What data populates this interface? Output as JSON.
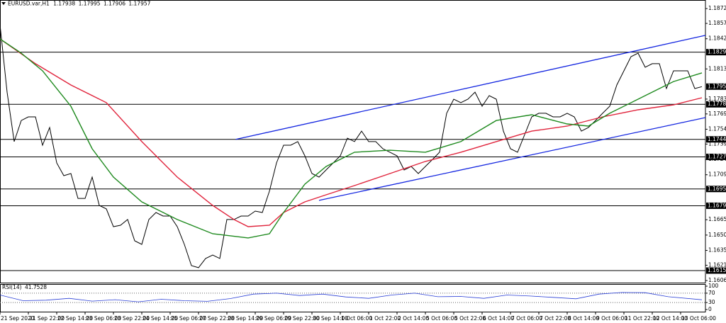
{
  "chart_data": {
    "type": "line",
    "symbol": "EURUSD.var,H1",
    "ohlc": [
      1.17938,
      1.17995,
      1.17906,
      1.17957
    ],
    "xlim": [
      0,
      398
    ],
    "xticks": [
      {
        "value": 0,
        "label": "21 Sep 2020"
      },
      {
        "value": 16,
        "label": "21 Sep 22:00"
      },
      {
        "value": 32,
        "label": "22 Sep 14:00"
      },
      {
        "value": 48,
        "label": "23 Sep 06:00"
      },
      {
        "value": 64,
        "label": "23 Sep 22:00"
      },
      {
        "value": 80,
        "label": "24 Sep 14:00"
      },
      {
        "value": 96,
        "label": "25 Sep 06:00"
      },
      {
        "value": 112,
        "label": "27 Sep 22:00"
      },
      {
        "value": 128,
        "label": "28 Sep 14:00"
      },
      {
        "value": 144,
        "label": "29 Sep 06:00"
      },
      {
        "value": 160,
        "label": "29 Sep 22:00"
      },
      {
        "value": 176,
        "label": "30 Sep 14:00"
      },
      {
        "value": 192,
        "label": "1 Oct 06:00"
      },
      {
        "value": 208,
        "label": "1 Oct 22:00"
      },
      {
        "value": 224,
        "label": "2 Oct 14:00"
      },
      {
        "value": 240,
        "label": "5 Oct 06:00"
      },
      {
        "value": 256,
        "label": "5 Oct 22:00"
      },
      {
        "value": 272,
        "label": "6 Oct 14:00"
      },
      {
        "value": 288,
        "label": "7 Oct 06:00"
      },
      {
        "value": 304,
        "label": "7 Oct 22:00"
      },
      {
        "value": 320,
        "label": "8 Oct 14:00"
      },
      {
        "value": 336,
        "label": "9 Oct 06:00"
      },
      {
        "value": 352,
        "label": "11 Oct 22:00"
      },
      {
        "value": 368,
        "label": "12 Oct 14:00"
      },
      {
        "value": 384,
        "label": "13 Oct 06:00"
      }
    ],
    "ylim": [
      1.1604,
      1.18804
    ],
    "yticks": [
      {
        "value": 1.1872,
        "label": "1.18720"
      },
      1.18575,
      1.18425,
      {
        "value": 1.1813,
        "label": "1.18130"
      },
      1.17835,
      {
        "value": 1.1769,
        "label": "1.17690"
      },
      {
        "value": 1.1754,
        "label": "1.17540"
      },
      1.17395,
      1.17245,
      1.17095,
      1.16655,
      1.16505,
      1.16355,
      {
        "value": 1.1621,
        "label": "1.16210"
      },
      {
        "value": 1.1606,
        "label": "1.16060"
      }
    ],
    "series": [
      {
        "color": "#000000",
        "x": [
          0,
          4,
          8,
          12,
          16,
          20,
          24,
          28,
          32,
          36,
          40,
          44,
          48,
          52,
          56,
          60,
          64,
          68,
          72,
          76,
          80,
          84,
          88,
          92,
          96,
          100,
          104,
          108,
          112,
          116,
          120,
          124,
          128,
          132,
          136,
          140,
          144,
          148,
          152,
          156,
          160,
          164,
          168,
          172,
          176,
          180,
          184,
          188,
          192,
          196,
          200,
          204,
          208,
          212,
          216,
          220,
          224,
          228,
          232,
          236,
          240,
          244,
          248,
          252,
          256,
          260,
          264,
          268,
          272,
          276,
          280,
          284,
          288,
          292,
          296,
          300,
          304,
          308,
          312,
          316,
          320,
          324,
          328,
          332,
          336,
          340,
          344,
          348,
          352,
          356,
          360,
          364,
          368,
          372,
          376,
          380,
          384,
          388,
          392,
          396
        ],
        "values": [
          1.18562,
          1.17903,
          1.17419,
          1.17626,
          1.17661,
          1.17661,
          1.17384,
          1.17557,
          1.17211,
          1.17086,
          1.17107,
          1.16864,
          1.16864,
          1.17072,
          1.16795,
          1.16761,
          1.16587,
          1.16601,
          1.16657,
          1.16449,
          1.16414,
          1.16657,
          1.16726,
          1.16691,
          1.16691,
          1.16587,
          1.16414,
          1.16206,
          1.16186,
          1.16276,
          1.1631,
          1.16276,
          1.16657,
          1.16657,
          1.16691,
          1.16691,
          1.1674,
          1.16726,
          1.16934,
          1.17211,
          1.17384,
          1.17384,
          1.17419,
          1.1728,
          1.17107,
          1.17072,
          1.17142,
          1.17211,
          1.1728,
          1.17453,
          1.17419,
          1.17522,
          1.17419,
          1.17419,
          1.17349,
          1.17315,
          1.1728,
          1.17142,
          1.17176,
          1.17107,
          1.17176,
          1.17245,
          1.17315,
          1.17696,
          1.17834,
          1.178,
          1.17834,
          1.17903,
          1.17765,
          1.17869,
          1.17834,
          1.17522,
          1.17349,
          1.17315,
          1.17488,
          1.17661,
          1.17696,
          1.17696,
          1.17661,
          1.17661,
          1.17696,
          1.17661,
          1.17522,
          1.17557,
          1.17626,
          1.17696,
          1.17765,
          1.17973,
          1.18111,
          1.1825,
          1.18284,
          1.18146,
          1.18181,
          1.18181,
          1.17938,
          1.18111,
          1.18111,
          1.18111,
          1.17938,
          1.17957
        ]
      },
      {
        "color": "#e0243c",
        "x": [
          0,
          20,
          40,
          60,
          80,
          100,
          120,
          132,
          140,
          152,
          160,
          172,
          184,
          200,
          220,
          240,
          260,
          280,
          300,
          320,
          340,
          360,
          380,
          396
        ],
        "values": [
          1.18423,
          1.18181,
          1.17973,
          1.178,
          1.17419,
          1.17072,
          1.16795,
          1.16657,
          1.16587,
          1.16601,
          1.16726,
          1.1683,
          1.16899,
          1.16989,
          1.17107,
          1.17225,
          1.17315,
          1.17419,
          1.17522,
          1.17571,
          1.17661,
          1.1773,
          1.17779,
          1.17848
        ]
      },
      {
        "color": "#1f8a1f",
        "x": [
          0,
          12,
          24,
          40,
          52,
          64,
          80,
          100,
          120,
          140,
          152,
          160,
          172,
          184,
          200,
          220,
          240,
          260,
          280,
          300,
          320,
          332,
          344,
          360,
          380,
          396
        ],
        "values": [
          1.18423,
          1.18284,
          1.18111,
          1.17765,
          1.17349,
          1.17072,
          1.1683,
          1.16657,
          1.16518,
          1.16477,
          1.16518,
          1.16726,
          1.17003,
          1.17176,
          1.17315,
          1.17335,
          1.17315,
          1.17419,
          1.17626,
          1.17682,
          1.17592,
          1.17571,
          1.17696,
          1.17834,
          1.18007,
          1.18091
        ]
      }
    ],
    "trendlines": [
      {
        "color": "#1426e0",
        "x": [
          133,
          398
        ],
        "values": [
          1.17441,
          1.18458
        ]
      },
      {
        "color": "#1426e0",
        "x": [
          180,
          398
        ],
        "values": [
          1.16844,
          1.17654
        ]
      }
    ],
    "levels": [
      1.18294,
      1.17784,
      1.17441,
      {
        "value": 1.1727,
        "label": "1.17270"
      },
      1.16956,
      1.16792,
      1.16158
    ],
    "current_price": 1.17957,
    "rsi": {
      "label": "RSI(14)",
      "value": 41.7528,
      "color": "#2a3fd6",
      "ylim": [
        0,
        100
      ],
      "yticks": [
        100,
        70,
        30,
        0
      ],
      "x": [
        0,
        13,
        26,
        39,
        52,
        65,
        78,
        91,
        104,
        117,
        130,
        143,
        156,
        169,
        182,
        195,
        208,
        221,
        234,
        247,
        260,
        273,
        286,
        299,
        312,
        325,
        338,
        351,
        364,
        377,
        396
      ],
      "values": [
        62,
        38,
        40,
        48,
        36,
        42,
        33,
        44,
        38,
        35,
        47,
        66,
        70,
        60,
        66,
        54,
        48,
        62,
        70,
        55,
        56,
        48,
        62,
        58,
        52,
        46,
        66,
        73,
        72,
        55,
        41.7528
      ]
    }
  }
}
